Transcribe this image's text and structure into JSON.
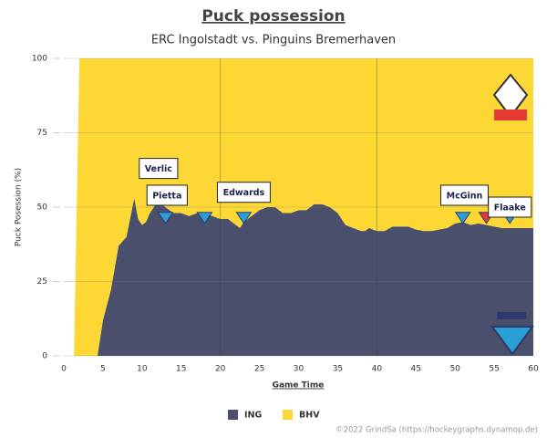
{
  "chart_data": {
    "type": "area",
    "title": "Puck possession",
    "subtitle": "ERC Ingolstadt vs. Pinguins Bremerhaven",
    "x_label": "Game Time",
    "y_label": "Puck Posession (%)",
    "x": [
      0,
      1.3,
      2,
      3,
      4.3,
      5,
      6,
      7,
      8,
      9,
      9.5,
      10,
      10.5,
      11,
      12,
      13,
      14,
      15,
      16,
      17,
      18,
      19,
      20,
      21,
      22,
      22.5,
      23,
      24,
      25,
      26,
      27,
      28,
      29,
      30,
      31,
      32,
      33,
      34,
      35,
      36,
      37,
      38,
      38.5,
      39,
      40,
      41,
      42,
      43,
      44,
      45,
      46,
      47,
      48,
      49,
      50,
      51,
      52,
      53,
      54,
      55,
      56,
      57,
      58,
      59,
      60
    ],
    "series": [
      {
        "name": "ING",
        "color": "#4a4f6c",
        "values": [
          0,
          0,
          0,
          0,
          0,
          12,
          22,
          37,
          40,
          53,
          46,
          44,
          45,
          48,
          52,
          50,
          48,
          48,
          47,
          48,
          48,
          47,
          46,
          46,
          44,
          43,
          45,
          47,
          49,
          50,
          50,
          48,
          48,
          49,
          49,
          51,
          51,
          50,
          48,
          44,
          43,
          42,
          42,
          43,
          42,
          42,
          43.5,
          43.5,
          43.5,
          42.5,
          42,
          42,
          42.5,
          43,
          44.5,
          45,
          44,
          44.5,
          44,
          43.5,
          43,
          43,
          43,
          43,
          43
        ]
      },
      {
        "name": "BHV",
        "color": "#fdd835",
        "values": [
          0,
          0,
          100,
          100,
          100,
          88,
          78,
          63,
          60,
          47,
          54,
          56,
          55,
          52,
          48,
          50,
          52,
          52,
          53,
          52,
          52,
          53,
          54,
          54,
          56,
          57,
          55,
          53,
          51,
          50,
          50,
          52,
          52,
          51,
          51,
          49,
          49,
          50,
          52,
          56,
          57,
          58,
          58,
          57,
          58,
          58,
          56.5,
          56.5,
          56.5,
          57.5,
          58,
          58,
          57.5,
          57,
          55.5,
          55,
          56,
          55.5,
          56,
          56.5,
          57,
          57,
          57,
          57,
          57
        ]
      }
    ],
    "xlim": [
      0,
      60
    ],
    "xticks": [
      0,
      5,
      10,
      15,
      20,
      25,
      30,
      35,
      40,
      45,
      50,
      55,
      60
    ],
    "ylim": [
      0,
      100
    ],
    "yticks": [
      0,
      25,
      50,
      75,
      100
    ],
    "grid": true,
    "period_lines": [
      20,
      40
    ],
    "annotations": [
      {
        "text": "Verlic",
        "x": 12.1,
        "y": 63
      },
      {
        "text": "Pietta",
        "x": 13.2,
        "y": 54
      },
      {
        "text": "Edwards",
        "x": 23,
        "y": 55
      },
      {
        "text": "McGinn",
        "x": 51.2,
        "y": 54
      },
      {
        "text": "Flaake",
        "x": 57,
        "y": 50
      }
    ],
    "goals": [
      {
        "x": 13,
        "color": "#2a9fd6"
      },
      {
        "x": 18,
        "color": "#2a9fd6"
      },
      {
        "x": 23,
        "color": "#2a9fd6"
      },
      {
        "x": 51,
        "color": "#2a9fd6"
      },
      {
        "x": 54,
        "color": "#e53935"
      },
      {
        "x": 57,
        "color": "#2a9fd6"
      }
    ],
    "credit": "©2022 GrindSa (https://hockeygraphs.dynamop.de)"
  }
}
